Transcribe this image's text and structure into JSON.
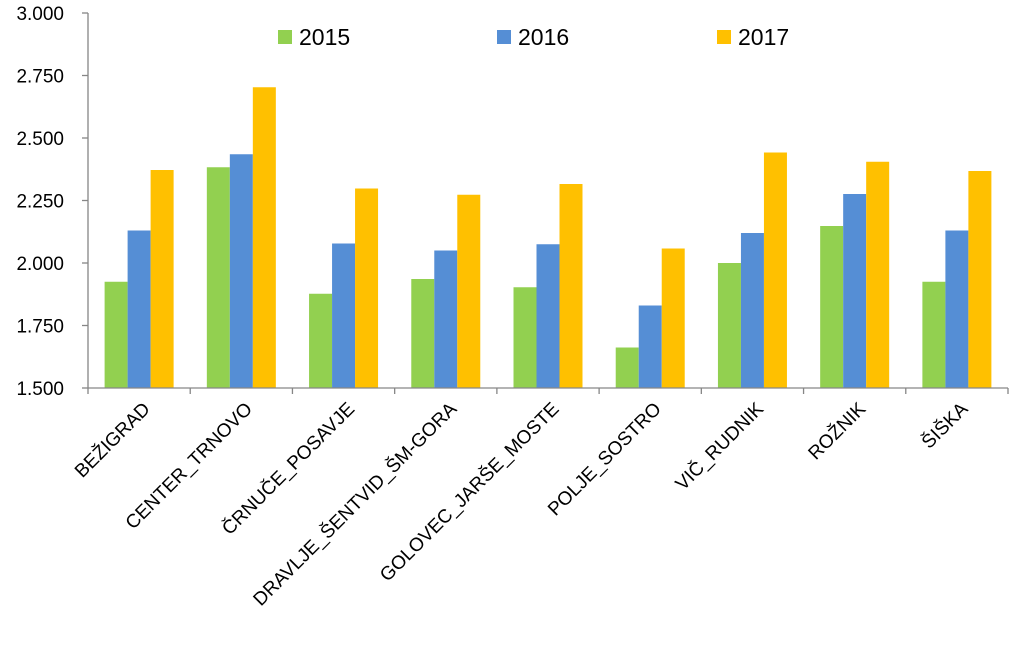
{
  "chart_data": {
    "type": "bar",
    "title": "",
    "xlabel": "",
    "ylabel": "",
    "ylim": [
      1500,
      3000
    ],
    "yticks": [
      1500,
      1750,
      2000,
      2250,
      2500,
      2750,
      3000
    ],
    "ytick_labels": [
      "1.500",
      "1.750",
      "2.000",
      "2.250",
      "2.500",
      "2.750",
      "3.000"
    ],
    "grid": false,
    "legend_position": "top",
    "categories": [
      "BEŽIGRAD",
      "CENTER_TRNOVO",
      "ČRNUČE_POSAVJE",
      "DRAVLJE_ŠENTVID_ŠM-GORA",
      "GOLOVEC_JARŠE_MOSTE",
      "POLJE_SOSTRO",
      "VIČ_RUDNIK",
      "ROŽNIK",
      "ŠIŠKA"
    ],
    "series": [
      {
        "name": "2015",
        "color": "#92D050",
        "values": [
          1925,
          2383,
          1877,
          1936,
          1903,
          1662,
          2000,
          2148,
          1925
        ]
      },
      {
        "name": "2016",
        "color": "#558ED5",
        "values": [
          2130,
          2435,
          2078,
          2050,
          2075,
          1830,
          2120,
          2276,
          2130
        ]
      },
      {
        "name": "2017",
        "color": "#FFC000",
        "values": [
          2372,
          2703,
          2298,
          2273,
          2316,
          2058,
          2442,
          2405,
          2368
        ]
      }
    ]
  }
}
